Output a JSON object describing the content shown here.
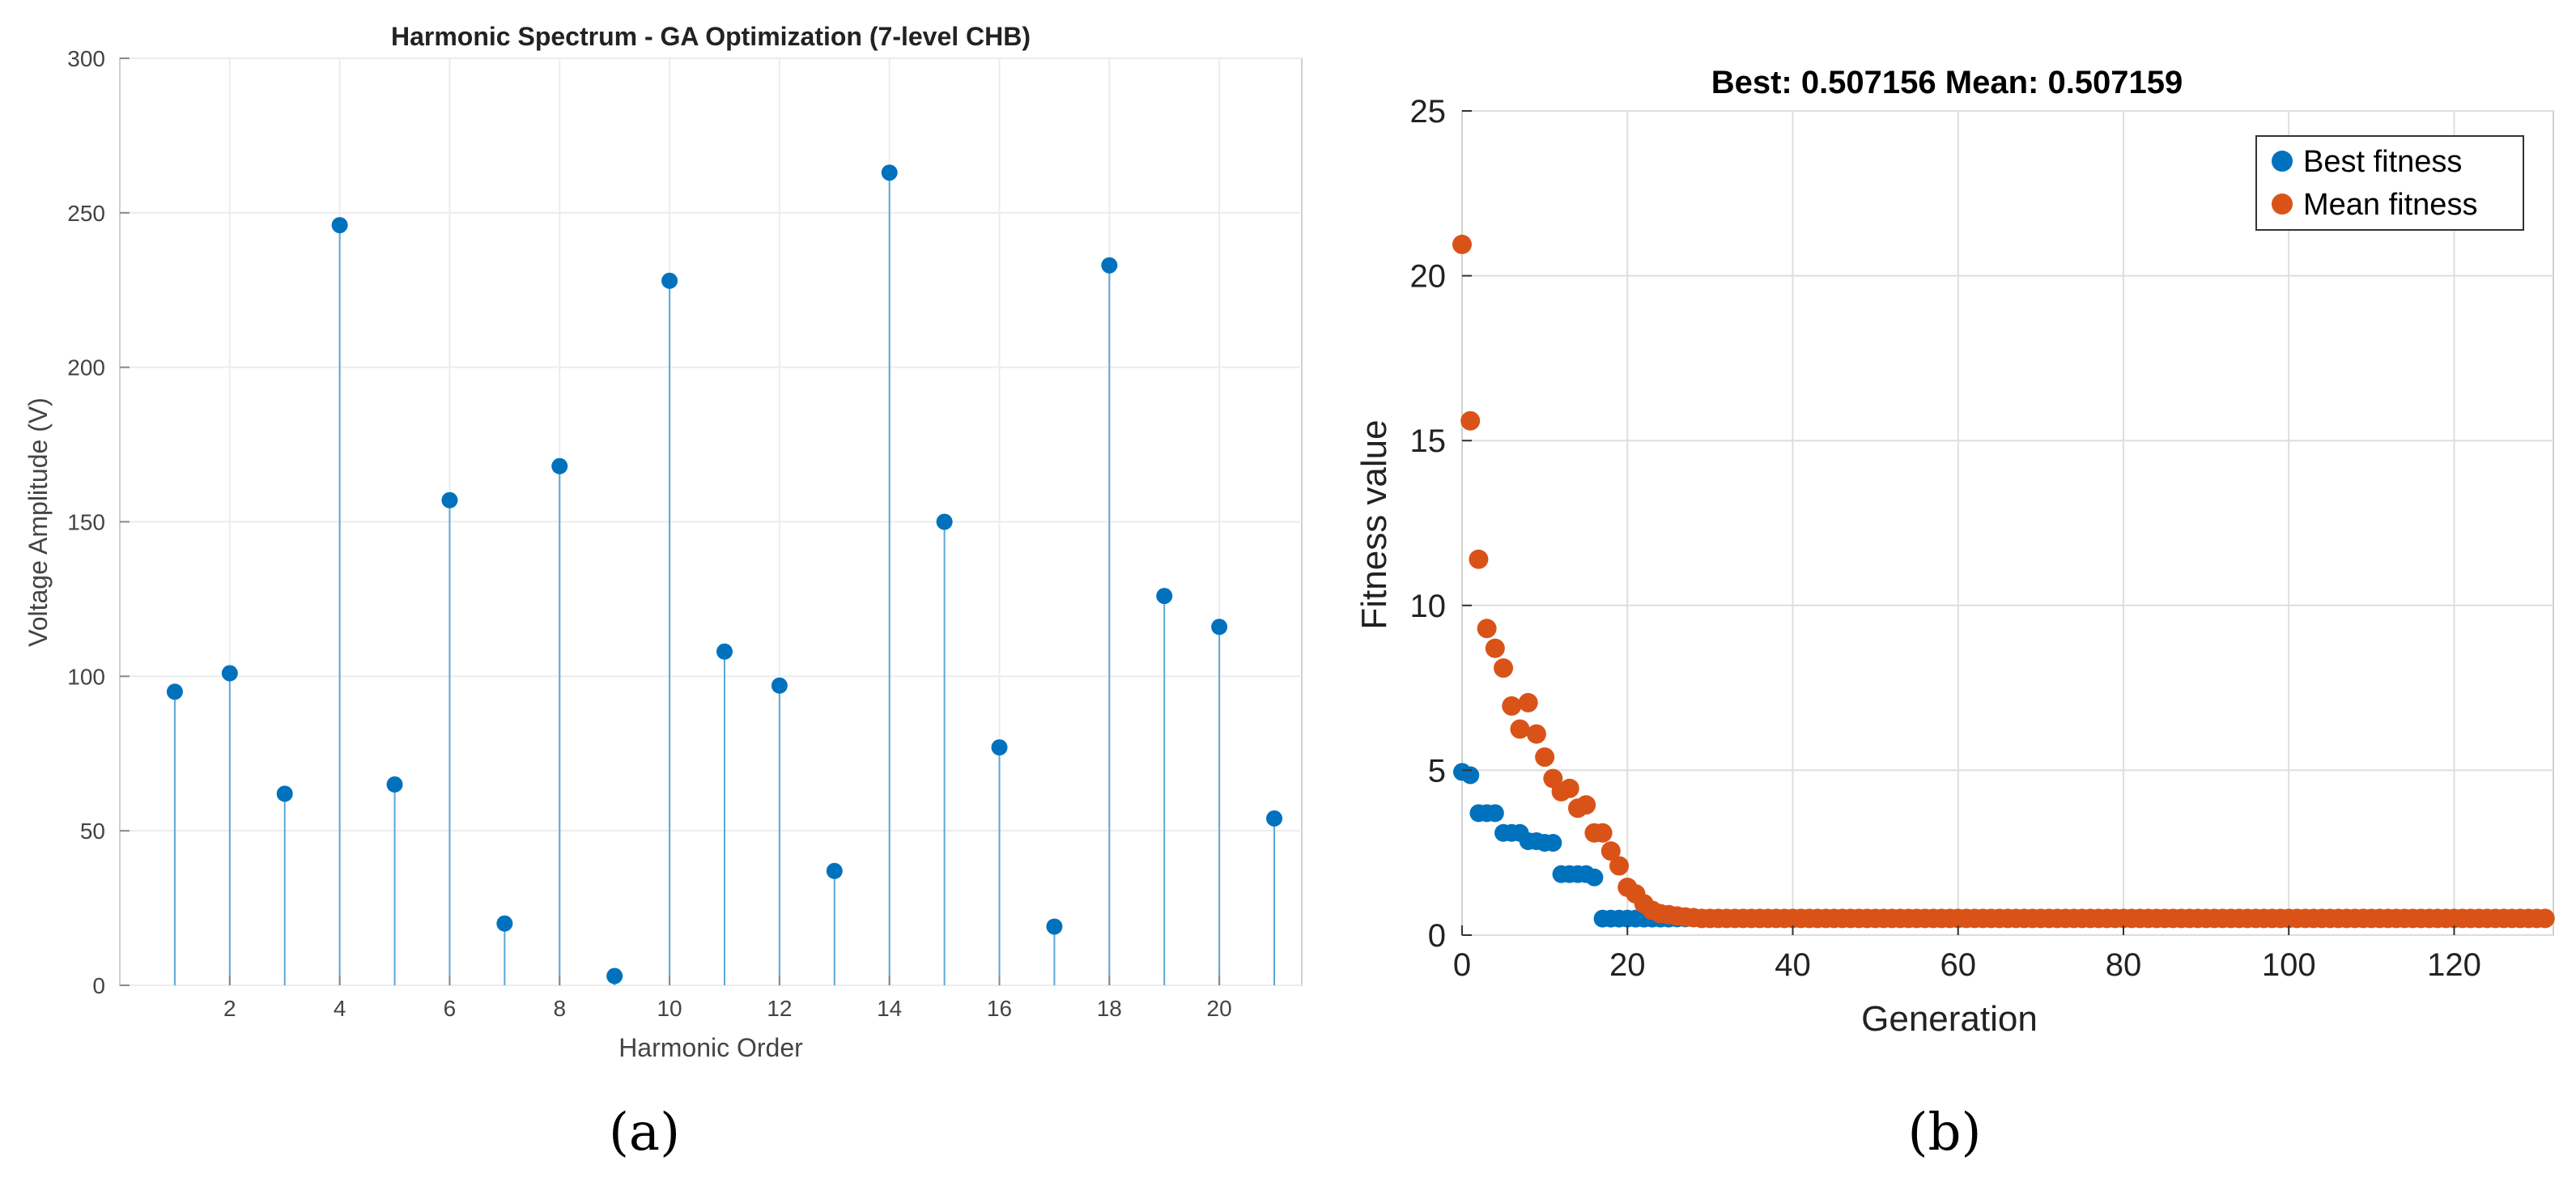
{
  "chart_data": [
    {
      "type": "stem",
      "title": "Harmonic Spectrum - GA Optimization (7-level CHB)",
      "xlabel": "Harmonic Order",
      "ylabel": "Voltage Amplitude (V)",
      "xlim": [
        0,
        21.5
      ],
      "ylim": [
        0,
        300
      ],
      "xticks": [
        2,
        4,
        6,
        8,
        10,
        12,
        14,
        16,
        18,
        20
      ],
      "yticks": [
        0,
        50,
        100,
        150,
        200,
        250,
        300
      ],
      "x": [
        1,
        2,
        3,
        4,
        5,
        6,
        7,
        8,
        9,
        10,
        11,
        12,
        13,
        14,
        15,
        16,
        17,
        18,
        19,
        20,
        21
      ],
      "values": [
        95,
        101,
        62,
        246,
        65,
        157,
        20,
        168,
        3,
        228,
        108,
        97,
        37,
        263,
        150,
        77,
        19,
        233,
        126,
        116,
        54
      ],
      "color": "#0072BD",
      "grid": true,
      "caption": "(a)"
    },
    {
      "type": "scatter",
      "title": "Best: 0.507156 Mean: 0.507159",
      "xlabel": "Generation",
      "ylabel": "Fitness value",
      "xlim": [
        0,
        132
      ],
      "ylim": [
        0,
        25
      ],
      "xticks": [
        0,
        20,
        40,
        60,
        80,
        100,
        120
      ],
      "yticks": [
        0,
        5,
        10,
        15,
        20,
        25
      ],
      "grid": true,
      "legend_position": "top-right",
      "series": [
        {
          "name": "Best fitness",
          "color": "#0072BD",
          "points": [
            [
              0,
              4.95
            ],
            [
              1,
              4.85
            ],
            [
              2,
              3.7
            ],
            [
              3,
              3.7
            ],
            [
              4,
              3.7
            ],
            [
              5,
              3.1
            ],
            [
              6,
              3.1
            ],
            [
              7,
              3.1
            ],
            [
              8,
              2.85
            ],
            [
              9,
              2.85
            ],
            [
              10,
              2.8
            ],
            [
              11,
              2.8
            ],
            [
              12,
              1.85
            ],
            [
              13,
              1.85
            ],
            [
              14,
              1.85
            ],
            [
              15,
              1.85
            ],
            [
              16,
              1.75
            ],
            [
              17,
              0.5
            ],
            [
              18,
              0.5
            ],
            [
              19,
              0.5
            ],
            [
              20,
              0.5
            ],
            [
              21,
              0.5
            ],
            [
              22,
              0.5
            ],
            [
              23,
              0.5
            ],
            [
              24,
              0.5
            ],
            [
              25,
              0.5
            ]
          ]
        },
        {
          "name": "Mean fitness",
          "color": "#D95319",
          "points": [
            [
              0,
              20.95
            ],
            [
              1,
              15.6
            ],
            [
              2,
              11.4
            ],
            [
              3,
              9.3
            ],
            [
              4,
              8.7
            ],
            [
              5,
              8.1
            ],
            [
              6,
              6.95
            ],
            [
              7,
              6.25
            ],
            [
              8,
              7.05
            ],
            [
              9,
              6.1
            ],
            [
              10,
              5.4
            ],
            [
              11,
              4.75
            ],
            [
              12,
              4.35
            ],
            [
              13,
              4.45
            ],
            [
              14,
              3.85
            ],
            [
              15,
              3.95
            ],
            [
              16,
              3.1
            ],
            [
              17,
              3.1
            ],
            [
              18,
              2.55
            ],
            [
              19,
              2.1
            ],
            [
              20,
              1.45
            ],
            [
              21,
              1.25
            ],
            [
              22,
              0.95
            ],
            [
              23,
              0.75
            ],
            [
              24,
              0.65
            ],
            [
              25,
              0.62
            ],
            [
              26,
              0.58
            ],
            [
              27,
              0.55
            ],
            [
              28,
              0.53
            ]
          ]
        }
      ],
      "tail": {
        "from": 29,
        "to": 131,
        "value": 0.507
      },
      "caption": "(b)"
    }
  ]
}
